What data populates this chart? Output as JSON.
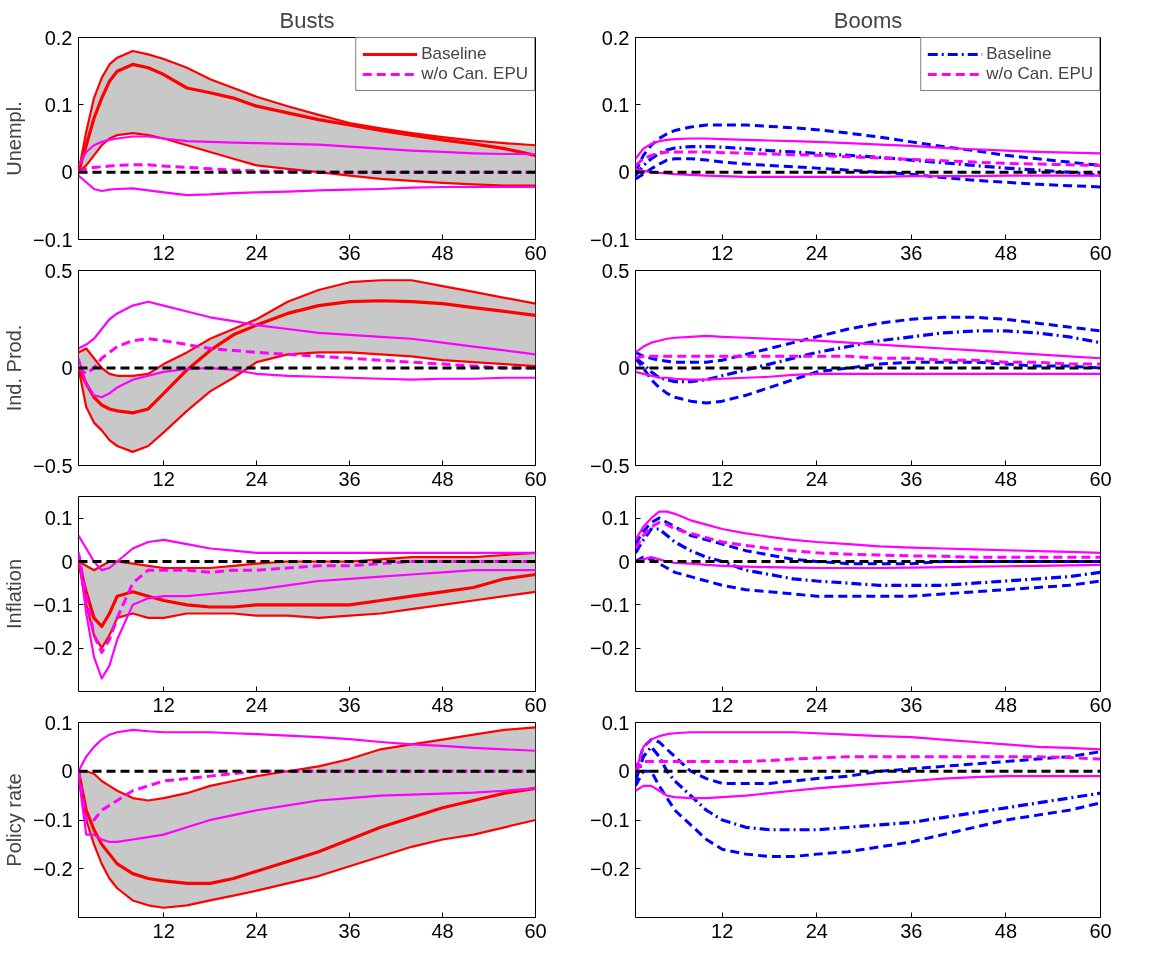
{
  "chart_data": [
    {
      "type": "line",
      "title": "Busts",
      "ylabel": "Unempl.",
      "x": [
        1,
        2,
        3,
        4,
        5,
        6,
        8,
        10,
        12,
        15,
        18,
        21,
        24,
        28,
        32,
        36,
        40,
        44,
        48,
        52,
        56,
        60
      ],
      "xlim": [
        1,
        60
      ],
      "xticks": [
        12,
        24,
        36,
        48,
        60
      ],
      "ylim": [
        -0.1,
        0.2
      ],
      "yticks": [
        {
          "value": -0.1,
          "label": "−0.1"
        },
        0,
        0.1,
        0.2
      ],
      "grid": false,
      "legend": "top right",
      "ref_lines": [
        {
          "axis": "y",
          "value": 0,
          "color": "#000000",
          "line_style": "dashed"
        }
      ],
      "series": [
        {
          "name": "Baseline",
          "color": "#ff0000",
          "line_style": "solid",
          "values": [
            0.0,
            0.04,
            0.08,
            0.11,
            0.135,
            0.15,
            0.16,
            0.155,
            0.145,
            0.125,
            0.118,
            0.11,
            0.098,
            0.088,
            0.078,
            0.07,
            0.062,
            0.055,
            0.048,
            0.042,
            0.035,
            0.025
          ],
          "upper": [
            0.0,
            0.06,
            0.11,
            0.14,
            0.16,
            0.17,
            0.18,
            0.175,
            0.168,
            0.155,
            0.138,
            0.125,
            0.112,
            0.098,
            0.085,
            0.073,
            0.065,
            0.058,
            0.052,
            0.047,
            0.043,
            0.04
          ],
          "lower": [
            0,
            0.01,
            0.025,
            0.04,
            0.05,
            0.055,
            0.058,
            0.055,
            0.05,
            0.04,
            0.03,
            0.02,
            0.01,
            0.005,
            0.0,
            -0.005,
            -0.01,
            -0.013,
            -0.016,
            -0.018,
            -0.02,
            -0.02
          ]
        },
        {
          "color": "#ff0000",
          "line_style": "solid",
          "values": [
            0.0,
            0.06,
            0.11,
            0.14,
            0.16,
            0.17,
            0.18,
            0.175,
            0.168,
            0.155,
            0.138,
            0.125,
            0.112,
            0.098,
            0.085,
            0.073,
            0.065,
            0.058,
            0.052,
            0.047,
            0.043,
            0.04
          ]
        },
        {
          "color": "#ff0000",
          "line_style": "solid",
          "values": [
            0,
            0.01,
            0.025,
            0.04,
            0.05,
            0.055,
            0.058,
            0.055,
            0.05,
            0.04,
            0.03,
            0.02,
            0.01,
            0.005,
            0.0,
            -0.005,
            -0.01,
            -0.013,
            -0.016,
            -0.018,
            -0.02,
            -0.02
          ]
        },
        {
          "name": "w/o Can. EPU",
          "color": "#ff00ff",
          "line_style": "dashed",
          "values": [
            0.0,
            0.005,
            0.007,
            0.008,
            0.009,
            0.01,
            0.011,
            0.011,
            0.009,
            0.007,
            0.005,
            0.003,
            0.002,
            0.001,
            0,
            0,
            0,
            0,
            0,
            0,
            0,
            0
          ]
        },
        {
          "color": "#ff00ff",
          "line_style": "solid",
          "values": [
            0.01,
            0.03,
            0.04,
            0.045,
            0.048,
            0.05,
            0.053,
            0.053,
            0.05,
            0.046,
            0.045,
            0.044,
            0.043,
            0.042,
            0.041,
            0.038,
            0.035,
            0.032,
            0.03,
            0.028,
            0.027,
            0.027
          ]
        },
        {
          "color": "#ff00ff",
          "line_style": "solid",
          "values": [
            -0.005,
            -0.015,
            -0.025,
            -0.028,
            -0.026,
            -0.025,
            -0.024,
            -0.027,
            -0.03,
            -0.034,
            -0.033,
            -0.031,
            -0.03,
            -0.029,
            -0.027,
            -0.026,
            -0.025,
            -0.023,
            -0.022,
            -0.022,
            -0.022,
            -0.022
          ]
        }
      ]
    },
    {
      "type": "line",
      "title": "Booms",
      "x": [
        1,
        2,
        3,
        4,
        5,
        6,
        8,
        10,
        12,
        15,
        18,
        21,
        24,
        28,
        32,
        36,
        40,
        44,
        48,
        52,
        56,
        60
      ],
      "xlim": [
        1,
        60
      ],
      "xticks": [
        12,
        24,
        36,
        48,
        60
      ],
      "ylim": [
        -0.1,
        0.2
      ],
      "yticks": [
        {
          "value": -0.1,
          "label": "−0.1"
        },
        0,
        0.1,
        0.2
      ],
      "grid": false,
      "legend": "top right",
      "ref_lines": [
        {
          "axis": "y",
          "value": 0,
          "color": "#000000",
          "line_style": "dashed"
        }
      ],
      "series": [
        {
          "name": "Baseline",
          "color": "#0000ff",
          "line_style": "dashdot",
          "values": [
            -0.005,
            0.01,
            0.02,
            0.028,
            0.033,
            0.036,
            0.038,
            0.038,
            0.037,
            0.035,
            0.032,
            0.03,
            0.028,
            0.025,
            0.022,
            0.018,
            0.014,
            0.01,
            0.006,
            0.003,
            0,
            -0.005
          ]
        },
        {
          "color": "#0000ff",
          "line_style": "dashed",
          "values": [
            0,
            0.025,
            0.04,
            0.05,
            0.057,
            0.062,
            0.067,
            0.07,
            0.07,
            0.07,
            0.068,
            0.066,
            0.063,
            0.058,
            0.052,
            0.045,
            0.038,
            0.032,
            0.025,
            0.02,
            0.015,
            0.01
          ]
        },
        {
          "color": "#0000ff",
          "line_style": "dashed",
          "values": [
            -0.01,
            -0.003,
            0.005,
            0.012,
            0.018,
            0.02,
            0.02,
            0.018,
            0.015,
            0.012,
            0.01,
            0.008,
            0.006,
            0.003,
            0.0,
            -0.003,
            -0.008,
            -0.012,
            -0.015,
            -0.018,
            -0.02,
            -0.022
          ]
        },
        {
          "name": "w/o Can. EPU",
          "color": "#ff00ff",
          "line_style": "dashed",
          "values": [
            0.01,
            0.02,
            0.025,
            0.028,
            0.03,
            0.03,
            0.03,
            0.03,
            0.029,
            0.028,
            0.027,
            0.026,
            0.025,
            0.023,
            0.021,
            0.019,
            0.017,
            0.015,
            0.013,
            0.012,
            0.011,
            0.01
          ]
        },
        {
          "color": "#ff00ff",
          "line_style": "solid",
          "values": [
            0.02,
            0.035,
            0.042,
            0.046,
            0.048,
            0.049,
            0.05,
            0.05,
            0.049,
            0.048,
            0.047,
            0.046,
            0.045,
            0.043,
            0.041,
            0.039,
            0.036,
            0.034,
            0.032,
            0.03,
            0.029,
            0.028
          ]
        },
        {
          "color": "#ff00ff",
          "line_style": "solid",
          "values": [
            0.005,
            0.002,
            0.0,
            -0.001,
            -0.002,
            -0.003,
            -0.004,
            -0.005,
            -0.006,
            -0.007,
            -0.007,
            -0.007,
            -0.007,
            -0.007,
            -0.007,
            -0.006,
            -0.006,
            -0.006,
            -0.005,
            -0.005,
            -0.005,
            -0.005
          ]
        }
      ]
    },
    {
      "type": "line",
      "ylabel": "Ind. Prod.",
      "x": [
        1,
        2,
        3,
        4,
        5,
        6,
        8,
        10,
        12,
        15,
        18,
        21,
        24,
        28,
        32,
        36,
        40,
        44,
        48,
        52,
        56,
        60
      ],
      "xlim": [
        1,
        60
      ],
      "xticks": [
        12,
        24,
        36,
        48,
        60
      ],
      "ylim": [
        -0.5,
        0.5
      ],
      "yticks": [
        {
          "value": -0.5,
          "label": "−0.5"
        },
        0,
        0.5
      ],
      "grid": false,
      "ref_lines": [
        {
          "axis": "y",
          "value": 0,
          "color": "#000000",
          "line_style": "dashed"
        }
      ],
      "series": [
        {
          "color": "#ff0000",
          "line_style": "solid",
          "values": [
            0.0,
            -0.08,
            -0.15,
            -0.19,
            -0.21,
            -0.22,
            -0.23,
            -0.21,
            -0.13,
            -0.01,
            0.09,
            0.17,
            0.22,
            0.28,
            0.32,
            0.34,
            0.345,
            0.34,
            0.33,
            0.31,
            0.29,
            0.27
          ],
          "upper": [
            0.08,
            0.1,
            0.05,
            0.0,
            -0.03,
            -0.04,
            -0.04,
            -0.03,
            0.02,
            0.08,
            0.15,
            0.2,
            0.25,
            0.34,
            0.4,
            0.44,
            0.45,
            0.45,
            0.42,
            0.39,
            0.36,
            0.33
          ],
          "lower": [
            0,
            -0.2,
            -0.28,
            -0.32,
            -0.37,
            -0.4,
            -0.43,
            -0.4,
            -0.33,
            -0.22,
            -0.12,
            -0.05,
            0.03,
            0.07,
            0.08,
            0.08,
            0.07,
            0.06,
            0.04,
            0.03,
            0.02,
            0.01
          ]
        },
        {
          "color": "#ff0000",
          "line_style": "solid",
          "values": [
            0.08,
            0.1,
            0.05,
            0.0,
            -0.03,
            -0.04,
            -0.04,
            -0.03,
            0.02,
            0.08,
            0.15,
            0.2,
            0.25,
            0.34,
            0.4,
            0.44,
            0.45,
            0.45,
            0.42,
            0.39,
            0.36,
            0.33
          ]
        },
        {
          "color": "#ff0000",
          "line_style": "solid",
          "values": [
            0,
            -0.2,
            -0.28,
            -0.32,
            -0.37,
            -0.4,
            -0.43,
            -0.4,
            -0.33,
            -0.22,
            -0.12,
            -0.05,
            0.03,
            0.07,
            0.08,
            0.08,
            0.07,
            0.06,
            0.04,
            0.03,
            0.02,
            0.01
          ]
        },
        {
          "color": "#ff00ff",
          "line_style": "dashed",
          "values": [
            0.0,
            -0.03,
            0.0,
            0.05,
            0.08,
            0.11,
            0.14,
            0.15,
            0.14,
            0.12,
            0.1,
            0.09,
            0.08,
            0.07,
            0.06,
            0.05,
            0.04,
            0.03,
            0.02,
            0.01,
            0.0,
            0.0
          ]
        },
        {
          "color": "#ff00ff",
          "line_style": "solid",
          "values": [
            0.1,
            0.12,
            0.15,
            0.2,
            0.25,
            0.28,
            0.32,
            0.34,
            0.32,
            0.29,
            0.26,
            0.24,
            0.22,
            0.2,
            0.18,
            0.17,
            0.16,
            0.15,
            0.13,
            0.11,
            0.09,
            0.07
          ]
        },
        {
          "color": "#ff00ff",
          "line_style": "solid",
          "values": [
            0.05,
            -0.08,
            -0.14,
            -0.15,
            -0.13,
            -0.1,
            -0.06,
            -0.04,
            -0.02,
            -0.005,
            0.0,
            -0.01,
            -0.03,
            -0.04,
            -0.045,
            -0.05,
            -0.055,
            -0.06,
            -0.055,
            -0.055,
            -0.05,
            -0.05
          ]
        }
      ]
    },
    {
      "type": "line",
      "x": [
        1,
        2,
        3,
        4,
        5,
        6,
        8,
        10,
        12,
        15,
        18,
        21,
        24,
        28,
        32,
        36,
        40,
        44,
        48,
        52,
        56,
        60
      ],
      "xlim": [
        1,
        60
      ],
      "xticks": [
        12,
        24,
        36,
        48,
        60
      ],
      "ylim": [
        -0.5,
        0.5
      ],
      "yticks": [
        {
          "value": -0.5,
          "label": "−0.5"
        },
        0,
        0.5
      ],
      "grid": false,
      "ref_lines": [
        {
          "axis": "y",
          "value": 0,
          "color": "#000000",
          "line_style": "dashed"
        }
      ],
      "series": [
        {
          "color": "#0000ff",
          "line_style": "dashdot",
          "values": [
            0.05,
            0.02,
            -0.02,
            -0.05,
            -0.06,
            -0.07,
            -0.07,
            -0.06,
            -0.04,
            -0.01,
            0.02,
            0.05,
            0.08,
            0.11,
            0.14,
            0.16,
            0.18,
            0.19,
            0.19,
            0.18,
            0.16,
            0.13
          ]
        },
        {
          "color": "#0000ff",
          "line_style": "dashed",
          "values": [
            0.08,
            0.06,
            0.05,
            0.04,
            0.035,
            0.03,
            0.03,
            0.03,
            0.04,
            0.07,
            0.1,
            0.13,
            0.16,
            0.2,
            0.23,
            0.25,
            0.26,
            0.26,
            0.25,
            0.23,
            0.21,
            0.19
          ]
        },
        {
          "color": "#0000ff",
          "line_style": "dashed",
          "values": [
            0.05,
            0.0,
            -0.06,
            -0.1,
            -0.13,
            -0.15,
            -0.17,
            -0.18,
            -0.17,
            -0.14,
            -0.1,
            -0.06,
            -0.02,
            0.0,
            0.02,
            0.03,
            0.03,
            0.03,
            0.02,
            0.01,
            0.01,
            0.0
          ]
        },
        {
          "color": "#ff00ff",
          "line_style": "dashed",
          "values": [
            0.05,
            0.06,
            0.06,
            0.06,
            0.06,
            0.06,
            0.06,
            0.06,
            0.06,
            0.06,
            0.06,
            0.06,
            0.06,
            0.06,
            0.05,
            0.05,
            0.04,
            0.04,
            0.03,
            0.03,
            0.02,
            0.02
          ]
        },
        {
          "color": "#ff00ff",
          "line_style": "solid",
          "values": [
            0.08,
            0.11,
            0.13,
            0.14,
            0.15,
            0.155,
            0.16,
            0.165,
            0.16,
            0.155,
            0.15,
            0.145,
            0.14,
            0.13,
            0.12,
            0.11,
            0.1,
            0.09,
            0.08,
            0.07,
            0.06,
            0.05
          ]
        },
        {
          "color": "#ff00ff",
          "line_style": "solid",
          "values": [
            -0.02,
            -0.03,
            -0.04,
            -0.05,
            -0.05,
            -0.055,
            -0.06,
            -0.06,
            -0.055,
            -0.05,
            -0.045,
            -0.035,
            -0.03,
            -0.03,
            -0.03,
            -0.03,
            -0.03,
            -0.03,
            -0.03,
            -0.03,
            -0.03,
            -0.03
          ]
        }
      ]
    },
    {
      "type": "line",
      "ylabel": "Inflation",
      "x": [
        1,
        2,
        3,
        4,
        5,
        6,
        8,
        10,
        12,
        15,
        18,
        21,
        24,
        28,
        32,
        36,
        40,
        44,
        48,
        52,
        56,
        60
      ],
      "xlim": [
        1,
        60
      ],
      "xticks": [
        12,
        24,
        36,
        48,
        60
      ],
      "ylim": [
        -0.3,
        0.15
      ],
      "yticks": [
        {
          "value": -0.2,
          "label": "−0.2"
        },
        {
          "value": -0.1,
          "label": "−0.1"
        },
        0,
        0.1
      ],
      "grid": false,
      "ref_lines": [
        {
          "axis": "y",
          "value": 0,
          "color": "#000000",
          "line_style": "dashed"
        }
      ],
      "series": [
        {
          "color": "#ff0000",
          "line_style": "solid",
          "values": [
            0.0,
            -0.07,
            -0.13,
            -0.15,
            -0.12,
            -0.08,
            -0.07,
            -0.08,
            -0.09,
            -0.1,
            -0.105,
            -0.105,
            -0.1,
            -0.1,
            -0.1,
            -0.1,
            -0.09,
            -0.08,
            -0.07,
            -0.06,
            -0.04,
            -0.03
          ],
          "upper": [
            0.0,
            -0.01,
            -0.02,
            -0.01,
            0.0,
            0.0,
            -0.005,
            -0.01,
            -0.015,
            -0.015,
            -0.015,
            -0.01,
            -0.005,
            0.0,
            0.0,
            0.0,
            0.005,
            0.01,
            0.01,
            0.01,
            0.015,
            0.02
          ],
          "lower": [
            0.0,
            -0.1,
            -0.17,
            -0.2,
            -0.17,
            -0.13,
            -0.12,
            -0.13,
            -0.13,
            -0.12,
            -0.12,
            -0.12,
            -0.125,
            -0.125,
            -0.13,
            -0.125,
            -0.12,
            -0.11,
            -0.1,
            -0.09,
            -0.08,
            -0.07
          ]
        },
        {
          "color": "#ff0000",
          "line_style": "solid",
          "values": [
            0.0,
            -0.01,
            -0.02,
            -0.01,
            0.0,
            0.0,
            -0.005,
            -0.01,
            -0.015,
            -0.015,
            -0.015,
            -0.01,
            -0.005,
            0.0,
            0.0,
            0.0,
            0.005,
            0.01,
            0.01,
            0.01,
            0.015,
            0.02
          ]
        },
        {
          "color": "#ff0000",
          "line_style": "solid",
          "values": [
            0.0,
            -0.1,
            -0.17,
            -0.2,
            -0.17,
            -0.13,
            -0.12,
            -0.13,
            -0.13,
            -0.12,
            -0.12,
            -0.12,
            -0.125,
            -0.125,
            -0.13,
            -0.125,
            -0.12,
            -0.11,
            -0.1,
            -0.09,
            -0.08,
            -0.07
          ]
        },
        {
          "color": "#ff00ff",
          "line_style": "dashed",
          "values": [
            0.02,
            -0.08,
            -0.17,
            -0.21,
            -0.18,
            -0.13,
            -0.05,
            -0.02,
            -0.02,
            -0.02,
            -0.025,
            -0.02,
            -0.02,
            -0.015,
            -0.01,
            -0.01,
            -0.005,
            0,
            0,
            0,
            0,
            0
          ]
        },
        {
          "color": "#ff00ff",
          "line_style": "solid",
          "values": [
            0.06,
            0.03,
            0.0,
            -0.02,
            -0.015,
            0.0,
            0.03,
            0.045,
            0.05,
            0.04,
            0.03,
            0.025,
            0.02,
            0.02,
            0.02,
            0.02,
            0.02,
            0.02,
            0.02,
            0.02,
            0.02,
            0.02
          ]
        },
        {
          "color": "#ff00ff",
          "line_style": "solid",
          "values": [
            0.02,
            -0.12,
            -0.22,
            -0.27,
            -0.24,
            -0.18,
            -0.1,
            -0.085,
            -0.08,
            -0.08,
            -0.075,
            -0.07,
            -0.065,
            -0.055,
            -0.045,
            -0.04,
            -0.035,
            -0.03,
            -0.025,
            -0.02,
            -0.02,
            -0.02
          ]
        }
      ]
    },
    {
      "type": "line",
      "x": [
        1,
        2,
        3,
        4,
        5,
        6,
        8,
        10,
        12,
        15,
        18,
        21,
        24,
        28,
        32,
        36,
        40,
        44,
        48,
        52,
        56,
        60
      ],
      "xlim": [
        1,
        60
      ],
      "xticks": [
        12,
        24,
        36,
        48,
        60
      ],
      "ylim": [
        -0.3,
        0.15
      ],
      "yticks": [
        {
          "value": -0.2,
          "label": "−0.2"
        },
        {
          "value": -0.1,
          "label": "−0.1"
        },
        0,
        0.1
      ],
      "grid": false,
      "ref_lines": [
        {
          "axis": "y",
          "value": 0,
          "color": "#000000",
          "line_style": "dashed"
        }
      ],
      "series": [
        {
          "color": "#0000ff",
          "line_style": "dashdot",
          "values": [
            0.02,
            0.05,
            0.075,
            0.075,
            0.06,
            0.045,
            0.025,
            0.01,
            0.0,
            -0.02,
            -0.03,
            -0.04,
            -0.045,
            -0.05,
            -0.055,
            -0.055,
            -0.055,
            -0.05,
            -0.045,
            -0.04,
            -0.035,
            -0.025
          ]
        },
        {
          "color": "#0000ff",
          "line_style": "dashed",
          "values": [
            0.04,
            0.07,
            0.09,
            0.1,
            0.09,
            0.08,
            0.06,
            0.05,
            0.04,
            0.025,
            0.015,
            0.005,
            0.0,
            -0.005,
            -0.005,
            -0.005,
            0.0,
            0.0,
            0.0,
            0.0,
            0.0,
            0.0
          ]
        },
        {
          "color": "#0000ff",
          "line_style": "dashed",
          "values": [
            0.0,
            0.01,
            0.005,
            -0.005,
            -0.015,
            -0.025,
            -0.035,
            -0.045,
            -0.055,
            -0.065,
            -0.07,
            -0.075,
            -0.08,
            -0.08,
            -0.08,
            -0.08,
            -0.075,
            -0.07,
            -0.065,
            -0.06,
            -0.055,
            -0.045
          ]
        },
        {
          "color": "#ff00ff",
          "line_style": "dashed",
          "values": [
            0.03,
            0.06,
            0.08,
            0.09,
            0.085,
            0.075,
            0.065,
            0.055,
            0.045,
            0.037,
            0.03,
            0.025,
            0.02,
            0.017,
            0.015,
            0.013,
            0.012,
            0.01,
            0.01,
            0.01,
            0.01,
            0.01
          ]
        },
        {
          "color": "#ff00ff",
          "line_style": "solid",
          "values": [
            0.05,
            0.08,
            0.1,
            0.115,
            0.115,
            0.11,
            0.095,
            0.085,
            0.075,
            0.065,
            0.057,
            0.05,
            0.045,
            0.04,
            0.035,
            0.032,
            0.03,
            0.028,
            0.026,
            0.024,
            0.022,
            0.02
          ]
        },
        {
          "color": "#ff00ff",
          "line_style": "solid",
          "values": [
            0.0,
            0.005,
            0.01,
            0.005,
            0.0,
            -0.003,
            -0.005,
            -0.008,
            -0.01,
            -0.012,
            -0.013,
            -0.014,
            -0.015,
            -0.015,
            -0.015,
            -0.014,
            -0.013,
            -0.012,
            -0.011,
            -0.01,
            -0.009,
            -0.008
          ]
        }
      ]
    },
    {
      "type": "line",
      "ylabel": "Policy rate",
      "x": [
        1,
        2,
        3,
        4,
        5,
        6,
        8,
        10,
        12,
        15,
        18,
        21,
        24,
        28,
        32,
        36,
        40,
        44,
        48,
        52,
        56,
        60
      ],
      "xlim": [
        1,
        60
      ],
      "xticks": [
        12,
        24,
        36,
        48,
        60
      ],
      "ylim": [
        -0.3,
        0.1
      ],
      "yticks": [
        {
          "value": -0.2,
          "label": "−0.2"
        },
        {
          "value": -0.1,
          "label": "−0.1"
        },
        0,
        0.1
      ],
      "grid": false,
      "ref_lines": [
        {
          "axis": "y",
          "value": 0,
          "color": "#000000",
          "line_style": "dashed"
        }
      ],
      "series": [
        {
          "color": "#ff0000",
          "line_style": "solid",
          "values": [
            0,
            -0.08,
            -0.12,
            -0.15,
            -0.17,
            -0.19,
            -0.21,
            -0.22,
            -0.225,
            -0.23,
            -0.23,
            -0.22,
            -0.205,
            -0.185,
            -0.165,
            -0.14,
            -0.115,
            -0.095,
            -0.075,
            -0.06,
            -0.045,
            -0.035
          ],
          "upper": [
            0,
            0.0,
            -0.005,
            -0.02,
            -0.03,
            -0.04,
            -0.055,
            -0.06,
            -0.055,
            -0.045,
            -0.03,
            -0.02,
            -0.01,
            0.0,
            0.01,
            0.025,
            0.045,
            0.055,
            0.065,
            0.075,
            0.085,
            0.09
          ],
          "lower": [
            0,
            -0.1,
            -0.15,
            -0.19,
            -0.22,
            -0.24,
            -0.265,
            -0.275,
            -0.28,
            -0.275,
            -0.265,
            -0.255,
            -0.245,
            -0.23,
            -0.215,
            -0.195,
            -0.175,
            -0.155,
            -0.14,
            -0.13,
            -0.115,
            -0.1
          ]
        },
        {
          "color": "#ff0000",
          "line_style": "solid",
          "values": [
            0,
            0.0,
            -0.005,
            -0.02,
            -0.03,
            -0.04,
            -0.055,
            -0.06,
            -0.055,
            -0.045,
            -0.03,
            -0.02,
            -0.01,
            0.0,
            0.01,
            0.025,
            0.045,
            0.055,
            0.065,
            0.075,
            0.085,
            0.09
          ]
        },
        {
          "color": "#ff0000",
          "line_style": "solid",
          "values": [
            0,
            -0.1,
            -0.15,
            -0.19,
            -0.22,
            -0.24,
            -0.265,
            -0.275,
            -0.28,
            -0.275,
            -0.265,
            -0.255,
            -0.245,
            -0.23,
            -0.215,
            -0.195,
            -0.175,
            -0.155,
            -0.14,
            -0.13,
            -0.115,
            -0.1
          ]
        },
        {
          "color": "#ff00ff",
          "line_style": "dashed",
          "values": [
            0,
            -0.1,
            -0.1,
            -0.08,
            -0.07,
            -0.06,
            -0.04,
            -0.03,
            -0.02,
            -0.015,
            -0.01,
            -0.005,
            0.0,
            0.0,
            0.0,
            0.0,
            0.0,
            0.0,
            0.0,
            0.0,
            0.0,
            0.0
          ]
        },
        {
          "color": "#ff00ff",
          "line_style": "solid",
          "values": [
            0,
            0.03,
            0.05,
            0.065,
            0.075,
            0.08,
            0.085,
            0.082,
            0.08,
            0.08,
            0.08,
            0.078,
            0.076,
            0.073,
            0.07,
            0.066,
            0.06,
            0.055,
            0.052,
            0.048,
            0.045,
            0.042
          ]
        },
        {
          "color": "#ff00ff",
          "line_style": "solid",
          "values": [
            -0.01,
            -0.13,
            -0.13,
            -0.14,
            -0.145,
            -0.145,
            -0.14,
            -0.135,
            -0.13,
            -0.115,
            -0.1,
            -0.09,
            -0.08,
            -0.07,
            -0.06,
            -0.055,
            -0.05,
            -0.048,
            -0.046,
            -0.044,
            -0.04,
            -0.035
          ]
        }
      ]
    },
    {
      "type": "line",
      "x": [
        1,
        2,
        3,
        4,
        5,
        6,
        8,
        10,
        12,
        15,
        18,
        21,
        24,
        28,
        32,
        36,
        40,
        44,
        48,
        52,
        56,
        60
      ],
      "xlim": [
        1,
        60
      ],
      "xticks": [
        12,
        24,
        36,
        48,
        60
      ],
      "ylim": [
        -0.3,
        0.1
      ],
      "yticks": [
        {
          "value": -0.2,
          "label": "−0.2"
        },
        {
          "value": -0.1,
          "label": "−0.1"
        },
        0,
        0.1
      ],
      "grid": false,
      "ref_lines": [
        {
          "axis": "y",
          "value": 0,
          "color": "#000000",
          "line_style": "dashed"
        }
      ],
      "series": [
        {
          "color": "#0000ff",
          "line_style": "dashdot",
          "values": [
            -0.02,
            0.03,
            0.05,
            0.03,
            0.0,
            -0.02,
            -0.05,
            -0.08,
            -0.1,
            -0.115,
            -0.12,
            -0.12,
            -0.12,
            -0.115,
            -0.11,
            -0.105,
            -0.095,
            -0.085,
            -0.075,
            -0.065,
            -0.055,
            -0.045
          ]
        },
        {
          "color": "#0000ff",
          "line_style": "dashed",
          "values": [
            0.0,
            0.05,
            0.065,
            0.06,
            0.045,
            0.03,
            0.0,
            -0.015,
            -0.025,
            -0.025,
            -0.025,
            -0.02,
            -0.015,
            -0.01,
            0.0,
            0.005,
            0.01,
            0.015,
            0.02,
            0.025,
            0.03,
            0.04
          ]
        },
        {
          "color": "#0000ff",
          "line_style": "dashed",
          "values": [
            -0.03,
            0.0,
            0.0,
            -0.03,
            -0.055,
            -0.08,
            -0.11,
            -0.14,
            -0.16,
            -0.17,
            -0.175,
            -0.175,
            -0.17,
            -0.165,
            -0.155,
            -0.145,
            -0.13,
            -0.115,
            -0.1,
            -0.09,
            -0.08,
            -0.065
          ]
        },
        {
          "color": "#ff00ff",
          "line_style": "dashed",
          "values": [
            0.0,
            0.02,
            0.02,
            0.02,
            0.02,
            0.02,
            0.02,
            0.02,
            0.02,
            0.02,
            0.022,
            0.025,
            0.027,
            0.03,
            0.03,
            0.03,
            0.03,
            0.03,
            0.03,
            0.03,
            0.028,
            0.025
          ]
        },
        {
          "color": "#ff00ff",
          "line_style": "solid",
          "values": [
            0.0,
            0.05,
            0.065,
            0.072,
            0.076,
            0.078,
            0.08,
            0.08,
            0.08,
            0.08,
            0.08,
            0.08,
            0.078,
            0.075,
            0.072,
            0.07,
            0.065,
            0.06,
            0.055,
            0.05,
            0.048,
            0.045
          ]
        },
        {
          "color": "#ff00ff",
          "line_style": "solid",
          "values": [
            -0.04,
            -0.03,
            -0.03,
            -0.04,
            -0.05,
            -0.053,
            -0.055,
            -0.055,
            -0.053,
            -0.05,
            -0.045,
            -0.04,
            -0.035,
            -0.03,
            -0.025,
            -0.02,
            -0.015,
            -0.012,
            -0.01,
            -0.01,
            -0.01,
            -0.01
          ]
        }
      ]
    }
  ]
}
